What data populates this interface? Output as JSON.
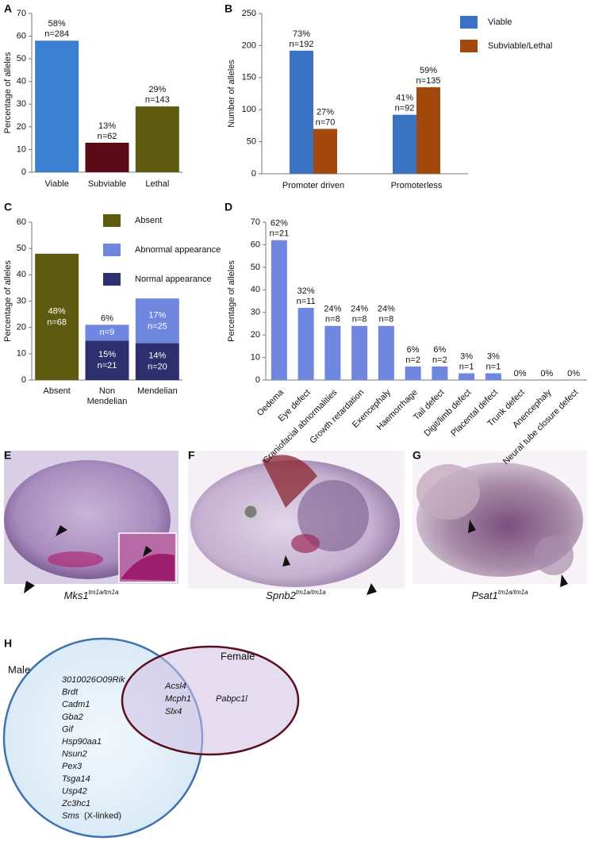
{
  "chart_data": [
    {
      "panel": "A",
      "type": "bar",
      "y_label": "Percentage of alleles",
      "categories": [
        "Viable",
        "Subviable",
        "Lethal"
      ],
      "values": [
        58,
        13,
        29
      ],
      "value_labels": [
        "58%",
        "13%",
        "29%"
      ],
      "n_labels": [
        "n=284",
        "n=62",
        "n=143"
      ],
      "colors": [
        "#3b80d0",
        "#5b0b16",
        "#5e5a10"
      ],
      "ylim": [
        0,
        70
      ],
      "yticks": [
        0,
        10,
        20,
        30,
        40,
        50,
        60,
        70
      ]
    },
    {
      "panel": "B",
      "type": "bar",
      "y_label": "Number of alleles",
      "categories": [
        "Promoter driven",
        "Promoterless"
      ],
      "series": [
        {
          "name": "Viable",
          "color": "#3a73c1",
          "values": [
            192,
            92
          ],
          "value_labels": [
            "73%",
            "41%"
          ],
          "n_labels": [
            "n=192",
            "n=92"
          ]
        },
        {
          "name": "Subviable/Lethal",
          "color": "#a3490e",
          "values": [
            70,
            135
          ],
          "value_labels": [
            "27%",
            "59%"
          ],
          "n_labels": [
            "n=70",
            "n=135"
          ]
        }
      ],
      "ylim": [
        0,
        250
      ],
      "yticks": [
        0,
        50,
        100,
        150,
        200,
        250
      ],
      "legend": "right"
    },
    {
      "panel": "C",
      "type": "stacked_bar",
      "y_label": "Percentage of alleles",
      "categories": [
        "Absent",
        "Non Mendelian",
        "Mendelian"
      ],
      "series": [
        {
          "name": "Normal appearance",
          "color": "#2d2f6e",
          "values": [
            null,
            15,
            14
          ],
          "value_labels": [
            null,
            "15%",
            "14%"
          ],
          "n_labels": [
            null,
            "n=21",
            "n=20"
          ]
        },
        {
          "name": "Abnormal appearance",
          "color": "#6f87de",
          "values": [
            null,
            6,
            17
          ],
          "value_labels": [
            null,
            "6%",
            "17%"
          ],
          "n_labels": [
            null,
            "n=9",
            "n=25"
          ]
        },
        {
          "name": "Absent",
          "color": "#5e5a10",
          "values": [
            48,
            null,
            null
          ],
          "value_labels": [
            "48%",
            null,
            null
          ],
          "n_labels": [
            "n=68",
            null,
            null
          ]
        }
      ],
      "ylim": [
        0,
        60
      ],
      "yticks": [
        0,
        10,
        20,
        30,
        40,
        50,
        60
      ],
      "legend": "top"
    },
    {
      "panel": "D",
      "type": "bar",
      "y_label": "Percentage of alleles",
      "categories": [
        "Oedema",
        "Eye defect",
        "Craniofacial abnormalities",
        "Growth retardation",
        "Exencephaly",
        "Haemorrhage",
        "Tail defect",
        "Digit/limb defect",
        "Placental defect",
        "Trunk defect",
        "Anencephaly",
        "Neural tube closure defect"
      ],
      "values": [
        62,
        32,
        24,
        24,
        24,
        6,
        6,
        3,
        3,
        0,
        0,
        0
      ],
      "value_labels": [
        "62%",
        "32%",
        "24%",
        "24%",
        "24%",
        "6%",
        "6%",
        "3%",
        "3%",
        "0%",
        "0%",
        "0%"
      ],
      "n_labels": [
        "n=21",
        "n=11",
        "n=8",
        "n=8",
        "n=8",
        "n=2",
        "n=2",
        "n=1",
        "n=1",
        null,
        null,
        null
      ],
      "color": "#6f87de",
      "ylim": [
        0,
        70
      ],
      "yticks": [
        0,
        10,
        20,
        30,
        40,
        50,
        60,
        70
      ]
    }
  ],
  "images": [
    {
      "panel": "E",
      "gene": "Mks1",
      "allele": "tm1a/tm1a"
    },
    {
      "panel": "F",
      "gene": "Spnb2",
      "allele": "tm1a/tm1a"
    },
    {
      "panel": "G",
      "gene": "Psat1",
      "allele": "tm1a/tm1a"
    }
  ],
  "venn": {
    "panel": "H",
    "male": {
      "title": "Male",
      "genes": [
        "3010026O09Rik",
        "Brdt",
        "Cadm1",
        "Gba2",
        "Gif",
        "Hsp90aa1",
        "Nsun2",
        "Pex3",
        "Tsga14",
        "Usp42",
        "Zc3hc1",
        "Sms"
      ],
      "note": "(X-linked)"
    },
    "shared": [
      "Acsl4",
      "Mcph1",
      "Slx4"
    ],
    "female": {
      "title": "Female",
      "genes": [
        "Pabpc1l"
      ]
    }
  }
}
